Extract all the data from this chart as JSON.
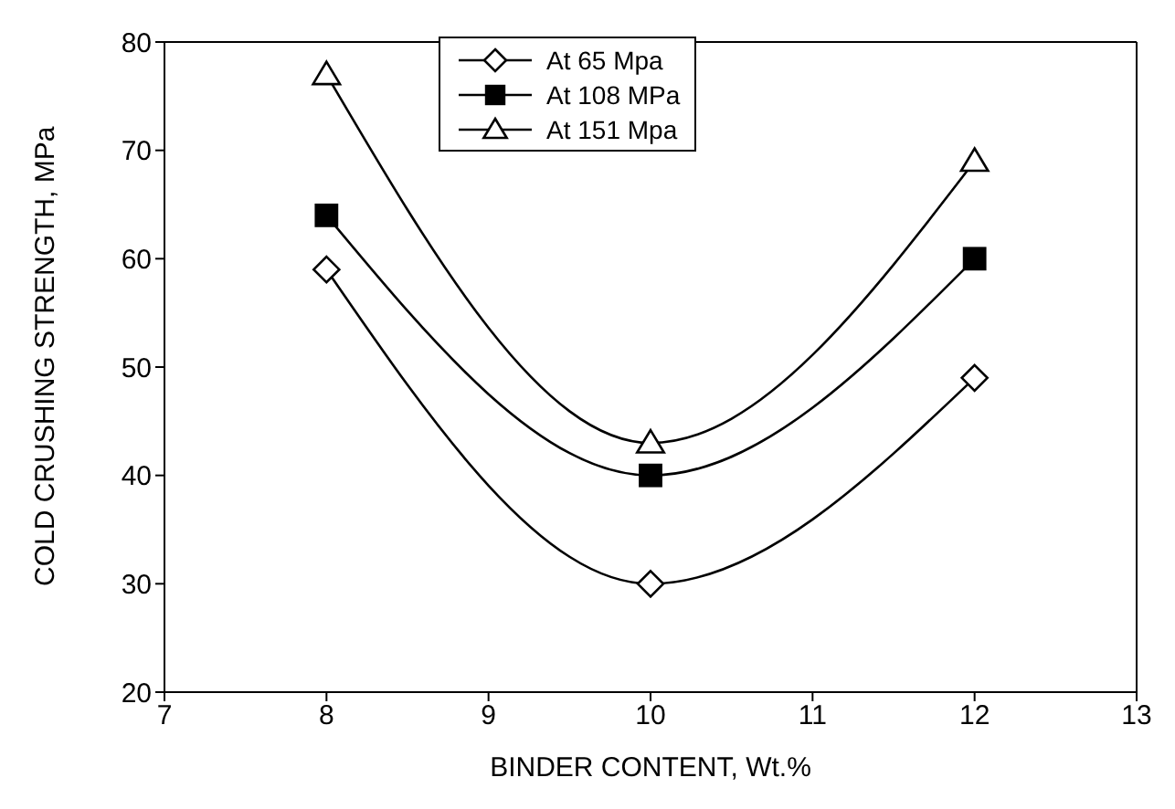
{
  "chart_data": {
    "type": "line",
    "xlabel": "BINDER CONTENT, Wt.%",
    "ylabel": "COLD CRUSHING STRENGTH, MPa",
    "x": [
      8,
      10,
      12
    ],
    "series": [
      {
        "name": "At 65 Mpa",
        "color": "#000000",
        "marker": "diamond",
        "values": [
          59,
          30,
          49
        ]
      },
      {
        "name": "At 108 MPa",
        "color": "#000000",
        "marker": "square",
        "values": [
          64,
          40,
          60
        ]
      },
      {
        "name": "At 151 Mpa",
        "color": "#000000",
        "marker": "triangle",
        "values": [
          77,
          43,
          69
        ]
      }
    ],
    "xlim": [
      7,
      13
    ],
    "xticks": [
      7,
      8,
      9,
      10,
      11,
      12,
      13
    ],
    "ylim": [
      20,
      80
    ],
    "yticks": [
      20,
      30,
      40,
      50,
      60,
      70,
      80
    ],
    "grid": false,
    "legend": "top",
    "line_style": "solid"
  }
}
